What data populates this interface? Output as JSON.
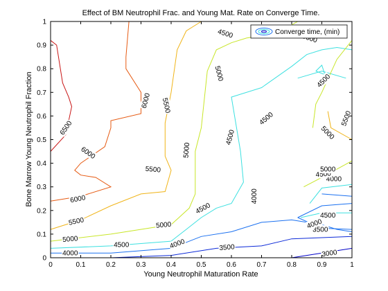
{
  "chart_data": {
    "type": "contour",
    "title": "Effect of BM Neutrophil Frac. and Young Mat. Rate on Converge Time.",
    "xlabel": "Young Neutrophil Maturation Rate",
    "ylabel": "Bone Marrow Young Neutrophil Fraction",
    "xlim": [
      0,
      1
    ],
    "ylim": [
      0,
      1
    ],
    "xticks": [
      "0",
      "0.1",
      "0.2",
      "0.3",
      "0.4",
      "0.5",
      "0.6",
      "0.7",
      "0.8",
      "0.9",
      "1"
    ],
    "yticks": [
      "0",
      "0.1",
      "0.2",
      "0.3",
      "0.4",
      "0.5",
      "0.6",
      "0.7",
      "0.8",
      "0.9",
      "1"
    ],
    "legend": {
      "label": "Converge time, (min)",
      "position": "top-right"
    },
    "series": [
      {
        "level": 3000,
        "color": "#0000c8",
        "segments": [
          [
            [
              0.8,
              0.0
            ],
            [
              0.9,
              0.02
            ],
            [
              1.0,
              0.04
            ]
          ]
        ]
      },
      {
        "level": 3500,
        "color": "#0a28d8",
        "segments": [
          [
            [
              0.0,
              0.0
            ],
            [
              0.2,
              0.0
            ],
            [
              0.4,
              0.01
            ],
            [
              0.55,
              0.04
            ],
            [
              0.7,
              0.05
            ],
            [
              0.8,
              0.08
            ],
            [
              0.9,
              0.085
            ],
            [
              1.0,
              0.09
            ]
          ]
        ]
      },
      {
        "level": 4000,
        "color": "#1a70f0",
        "segments": [
          [
            [
              0.0,
              0.02
            ],
            [
              0.2,
              0.02
            ],
            [
              0.4,
              0.04
            ],
            [
              0.5,
              0.09
            ],
            [
              0.6,
              0.11
            ],
            [
              0.7,
              0.15
            ],
            [
              0.8,
              0.16
            ],
            [
              0.9,
              0.14
            ],
            [
              0.95,
              0.12
            ],
            [
              1.0,
              0.11
            ]
          ],
          [
            [
              0.82,
              0.17
            ],
            [
              0.9,
              0.22
            ],
            [
              1.0,
              0.23
            ]
          ],
          [
            [
              0.82,
              0.17
            ],
            [
              0.9,
              0.125
            ],
            [
              1.0,
              0.12
            ]
          ],
          [
            [
              0.9,
              0.27
            ],
            [
              1.0,
              0.26
            ]
          ]
        ]
      },
      {
        "level": 4500,
        "color": "#3ce0e0",
        "segments": [
          [
            [
              0.0,
              0.04
            ],
            [
              0.2,
              0.05
            ],
            [
              0.4,
              0.07
            ],
            [
              0.45,
              0.12
            ],
            [
              0.5,
              0.17
            ],
            [
              0.55,
              0.21
            ],
            [
              0.6,
              0.23
            ],
            [
              0.64,
              0.32
            ],
            [
              0.63,
              0.45
            ],
            [
              0.6,
              0.68
            ],
            [
              0.7,
              0.72
            ],
            [
              0.8,
              0.81
            ],
            [
              0.85,
              0.86
            ],
            [
              0.9,
              0.88
            ],
            [
              0.95,
              0.89
            ],
            [
              1.0,
              0.88
            ]
          ],
          [
            [
              0.86,
              0.23
            ],
            [
              0.9,
              0.295
            ],
            [
              1.0,
              0.31
            ]
          ],
          [
            [
              0.83,
              0.17
            ],
            [
              0.9,
              0.19
            ],
            [
              1.0,
              0.19
            ]
          ],
          [
            [
              0.82,
              0.76
            ],
            [
              0.9,
              0.79
            ],
            [
              0.98,
              0.76
            ]
          ],
          [
            [
              0.88,
              0.79
            ],
            [
              0.91,
              0.775
            ],
            [
              0.9,
              0.815
            ],
            [
              0.88,
              0.79
            ]
          ]
        ]
      },
      {
        "level": 5000,
        "color": "#c8e628",
        "segments": [
          [
            [
              0.0,
              0.07
            ],
            [
              0.2,
              0.1
            ],
            [
              0.4,
              0.14
            ],
            [
              0.46,
              0.21
            ],
            [
              0.48,
              0.27
            ],
            [
              0.48,
              0.4
            ],
            [
              0.48,
              0.45
            ],
            [
              0.5,
              0.55
            ],
            [
              0.52,
              0.79
            ],
            [
              0.55,
              0.88
            ],
            [
              0.6,
              0.91
            ],
            [
              0.65,
              0.93
            ],
            [
              0.7,
              0.94
            ],
            [
              0.75,
              0.95
            ],
            [
              0.82,
              1.0
            ]
          ],
          [
            [
              0.84,
              0.3
            ],
            [
              0.9,
              0.34
            ],
            [
              1.0,
              0.41
            ]
          ],
          [
            [
              0.87,
              0.55
            ],
            [
              0.88,
              0.65
            ],
            [
              0.9,
              0.7
            ],
            [
              0.95,
              0.84
            ],
            [
              1.0,
              0.92
            ]
          ]
        ]
      },
      {
        "level": 5500,
        "color": "#f0b418",
        "segments": [
          [
            [
              0.0,
              0.12
            ],
            [
              0.1,
              0.16
            ],
            [
              0.2,
              0.22
            ],
            [
              0.3,
              0.27
            ],
            [
              0.38,
              0.28
            ],
            [
              0.4,
              0.37
            ],
            [
              0.38,
              0.43
            ],
            [
              0.38,
              0.57
            ],
            [
              0.4,
              0.7
            ],
            [
              0.42,
              0.88
            ],
            [
              0.45,
              0.96
            ],
            [
              0.5,
              1.0
            ]
          ],
          [
            [
              0.92,
              0.62
            ],
            [
              0.93,
              0.55
            ],
            [
              1.0,
              0.5
            ]
          ]
        ]
      },
      {
        "level": 6000,
        "color": "#e65a12",
        "segments": [
          [
            [
              0.0,
              0.24
            ],
            [
              0.1,
              0.26
            ],
            [
              0.2,
              0.3
            ],
            [
              0.15,
              0.34
            ],
            [
              0.1,
              0.35
            ],
            [
              0.08,
              0.37
            ],
            [
              0.1,
              0.4
            ],
            [
              0.18,
              0.47
            ],
            [
              0.2,
              0.55
            ],
            [
              0.2,
              0.58
            ],
            [
              0.3,
              0.61
            ],
            [
              0.3,
              0.66
            ],
            [
              0.3,
              0.7
            ],
            [
              0.25,
              0.8
            ],
            [
              0.25,
              0.85
            ],
            [
              0.26,
              1.0
            ]
          ]
        ]
      },
      {
        "level": 6500,
        "color": "#c81414",
        "segments": [
          [
            [
              0.0,
              0.45
            ],
            [
              0.05,
              0.52
            ],
            [
              0.07,
              0.64
            ],
            [
              0.06,
              0.68
            ],
            [
              0.04,
              0.74
            ],
            [
              0.02,
              0.9
            ],
            [
              0.0,
              0.92
            ]
          ]
        ]
      }
    ],
    "labels": [
      {
        "text": "3000",
        "x": 0.925,
        "y": 0.02,
        "angle": -8
      },
      {
        "text": "3500",
        "x": 0.585,
        "y": 0.045,
        "angle": -5
      },
      {
        "text": "3500",
        "x": 0.895,
        "y": 0.12,
        "angle": 0
      },
      {
        "text": "4000",
        "x": 0.065,
        "y": 0.02,
        "angle": 0
      },
      {
        "text": "4000",
        "x": 0.42,
        "y": 0.06,
        "angle": -20
      },
      {
        "text": "4000",
        "x": 0.675,
        "y": 0.26,
        "angle": -90
      },
      {
        "text": "4000",
        "x": 0.94,
        "y": 0.335,
        "angle": 0
      },
      {
        "text": "4000",
        "x": 0.875,
        "y": 0.145,
        "angle": -20
      },
      {
        "text": "4500",
        "x": 0.235,
        "y": 0.055,
        "angle": 0
      },
      {
        "text": "4500",
        "x": 0.505,
        "y": 0.21,
        "angle": -28
      },
      {
        "text": "4500",
        "x": 0.905,
        "y": 0.355,
        "angle": -5
      },
      {
        "text": "4500",
        "x": 0.92,
        "y": 0.18,
        "angle": 0
      },
      {
        "text": "4500",
        "x": 0.595,
        "y": 0.51,
        "angle": -75
      },
      {
        "text": "4500",
        "x": 0.715,
        "y": 0.59,
        "angle": -40
      },
      {
        "text": "4500",
        "x": 0.905,
        "y": 0.75,
        "angle": -45
      },
      {
        "text": "4500",
        "x": 0.58,
        "y": 0.95,
        "angle": 18
      },
      {
        "text": "5000",
        "x": 0.065,
        "y": 0.08,
        "angle": -5
      },
      {
        "text": "5000",
        "x": 0.375,
        "y": 0.14,
        "angle": -5
      },
      {
        "text": "5000",
        "x": 0.45,
        "y": 0.455,
        "angle": -85
      },
      {
        "text": "5000",
        "x": 0.56,
        "y": 0.78,
        "angle": 75
      },
      {
        "text": "5000",
        "x": 0.92,
        "y": 0.375,
        "angle": 0
      },
      {
        "text": "5000",
        "x": 0.92,
        "y": 0.53,
        "angle": 45
      },
      {
        "text": "5000",
        "x": 0.86,
        "y": 0.93,
        "angle": 18
      },
      {
        "text": "5500",
        "x": 0.085,
        "y": 0.155,
        "angle": -12
      },
      {
        "text": "5500",
        "x": 0.34,
        "y": 0.375,
        "angle": 5
      },
      {
        "text": "5500",
        "x": 0.385,
        "y": 0.645,
        "angle": 78
      },
      {
        "text": "5500",
        "x": 0.98,
        "y": 0.59,
        "angle": -70
      },
      {
        "text": "6000",
        "x": 0.09,
        "y": 0.25,
        "angle": -12
      },
      {
        "text": "6000",
        "x": 0.125,
        "y": 0.445,
        "angle": 35
      },
      {
        "text": "6000",
        "x": 0.315,
        "y": 0.665,
        "angle": -75
      },
      {
        "text": "6500",
        "x": 0.05,
        "y": 0.55,
        "angle": -55
      }
    ]
  }
}
